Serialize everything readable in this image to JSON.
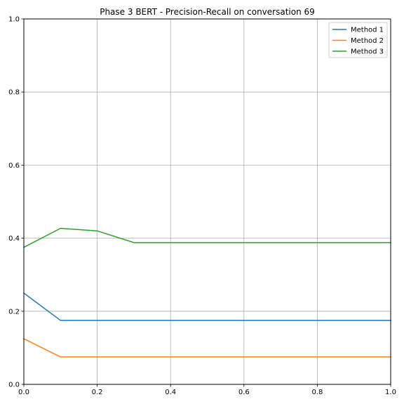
{
  "chart_data": {
    "type": "line",
    "title": "Phase 3 BERT - Precision-Recall on conversation 69",
    "xlabel": "",
    "ylabel": "",
    "xlim": [
      0,
      1
    ],
    "ylim": [
      0,
      1
    ],
    "xticks": [
      "0.0",
      "0.2",
      "0.4",
      "0.6",
      "0.8",
      "1.0"
    ],
    "yticks": [
      "0.0",
      "0.2",
      "0.4",
      "0.6",
      "0.8",
      "1.0"
    ],
    "grid": true,
    "legend_position": "top-right",
    "x": [
      0.0,
      0.1,
      0.2,
      0.3,
      0.4,
      0.5,
      0.6,
      0.7,
      0.8,
      0.9,
      1.0
    ],
    "series": [
      {
        "name": "Method 1",
        "color": "#1f77b4",
        "values": [
          0.25,
          0.175,
          0.175,
          0.175,
          0.175,
          0.175,
          0.175,
          0.175,
          0.175,
          0.175,
          0.175
        ]
      },
      {
        "name": "Method 2",
        "color": "#ff7f0e",
        "values": [
          0.125,
          0.075,
          0.075,
          0.075,
          0.075,
          0.075,
          0.075,
          0.075,
          0.075,
          0.075,
          0.075
        ]
      },
      {
        "name": "Method 3",
        "color": "#2ca02c",
        "values": [
          0.375,
          0.427,
          0.42,
          0.388,
          0.388,
          0.388,
          0.388,
          0.388,
          0.388,
          0.388,
          0.388
        ]
      }
    ]
  }
}
